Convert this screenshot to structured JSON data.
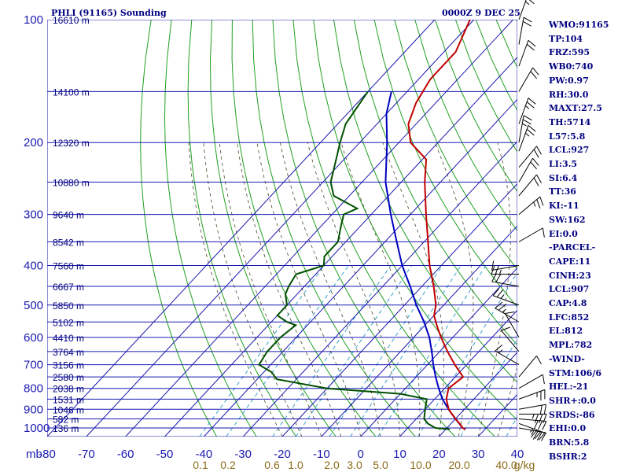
{
  "chart_data": {
    "type": "line",
    "title": "PHLI (91165) Sounding",
    "datetime": "0000Z  9 DEC 25",
    "pressure_unit_label": "mb",
    "mixing_unit_label": "g/kg",
    "pressure_levels": [
      100,
      200,
      300,
      400,
      500,
      600,
      700,
      800,
      900,
      1000
    ],
    "temperature_ticks": [
      -80,
      -70,
      -60,
      -50,
      -40,
      -30,
      -20,
      -10,
      0,
      10,
      20,
      30,
      40
    ],
    "mixing_ratio_ticks": [
      "0.1",
      "0.2",
      "0.6",
      "1.0",
      "2.0",
      "3.0",
      "5.0",
      "10.0",
      "20.0",
      "40.0"
    ],
    "height_labels": [
      {
        "p": 100,
        "label": "16610 m"
      },
      {
        "p": 150,
        "label": "14100 m"
      },
      {
        "p": 200,
        "label": "12320 m"
      },
      {
        "p": 250,
        "label": "10880 m"
      },
      {
        "p": 300,
        "label": "9640 m"
      },
      {
        "p": 350,
        "label": "8542 m"
      },
      {
        "p": 400,
        "label": "7560 m"
      },
      {
        "p": 450,
        "label": "6667 m"
      },
      {
        "p": 500,
        "label": "5850 m"
      },
      {
        "p": 550,
        "label": "5102 m"
      },
      {
        "p": 600,
        "label": "4410 m"
      },
      {
        "p": 650,
        "label": "3764 m"
      },
      {
        "p": 700,
        "label": "3156 m"
      },
      {
        "p": 750,
        "label": "2580 m"
      },
      {
        "p": 800,
        "label": "2038 m"
      },
      {
        "p": 850,
        "label": "1531 m"
      },
      {
        "p": 900,
        "label": "1046 m"
      },
      {
        "p": 950,
        "label": "582 m"
      },
      {
        "p": 1000,
        "label": "136 m"
      }
    ],
    "temperature_profile": [
      [
        1008,
        25
      ],
      [
        1000,
        24
      ],
      [
        980,
        22.5
      ],
      [
        950,
        20
      ],
      [
        925,
        18
      ],
      [
        900,
        16
      ],
      [
        850,
        13
      ],
      [
        800,
        11
      ],
      [
        750,
        12
      ],
      [
        700,
        7
      ],
      [
        650,
        2
      ],
      [
        600,
        -3
      ],
      [
        570,
        -6
      ],
      [
        550,
        -8
      ],
      [
        530,
        -10
      ],
      [
        500,
        -12
      ],
      [
        450,
        -17
      ],
      [
        400,
        -23
      ],
      [
        350,
        -29
      ],
      [
        300,
        -36
      ],
      [
        250,
        -44
      ],
      [
        220,
        -49
      ],
      [
        200,
        -57
      ],
      [
        180,
        -62
      ],
      [
        160,
        -65
      ],
      [
        140,
        -67
      ],
      [
        120,
        -67
      ],
      [
        100,
        -71
      ]
    ],
    "dewpoint_profile": [
      [
        1008,
        21
      ],
      [
        1000,
        17
      ],
      [
        975,
        14
      ],
      [
        950,
        12
      ],
      [
        925,
        11
      ],
      [
        900,
        10
      ],
      [
        875,
        9
      ],
      [
        850,
        8
      ],
      [
        825,
        0
      ],
      [
        810,
        -12
      ],
      [
        800,
        -20
      ],
      [
        760,
        -35
      ],
      [
        730,
        -38
      ],
      [
        700,
        -43
      ],
      [
        650,
        -44
      ],
      [
        600,
        -44
      ],
      [
        560,
        -43
      ],
      [
        550,
        -46
      ],
      [
        530,
        -50
      ],
      [
        500,
        -50
      ],
      [
        470,
        -53
      ],
      [
        450,
        -54
      ],
      [
        420,
        -55
      ],
      [
        400,
        -50
      ],
      [
        380,
        -52
      ],
      [
        350,
        -52
      ],
      [
        320,
        -55
      ],
      [
        300,
        -57
      ],
      [
        290,
        -55
      ],
      [
        270,
        -64
      ],
      [
        250,
        -68
      ],
      [
        220,
        -72
      ],
      [
        200,
        -75
      ],
      [
        180,
        -78
      ],
      [
        150,
        -80
      ]
    ],
    "parcel_profile": [
      [
        1008,
        25
      ],
      [
        1000,
        24
      ],
      [
        950,
        20
      ],
      [
        907,
        16.5
      ],
      [
        850,
        12
      ],
      [
        800,
        8.5
      ],
      [
        750,
        5
      ],
      [
        700,
        1.5
      ],
      [
        650,
        -2
      ],
      [
        600,
        -6
      ],
      [
        550,
        -11
      ],
      [
        500,
        -17
      ],
      [
        450,
        -23
      ],
      [
        400,
        -30
      ],
      [
        350,
        -37
      ],
      [
        300,
        -45
      ],
      [
        250,
        -54
      ],
      [
        200,
        -63
      ],
      [
        170,
        -70
      ],
      [
        150,
        -74
      ]
    ],
    "wind_barbs": [
      {
        "p": 1000,
        "dir": 100,
        "spd": 25
      },
      {
        "p": 975,
        "dir": 110,
        "spd": 28
      },
      {
        "p": 950,
        "dir": 95,
        "spd": 30
      },
      {
        "p": 925,
        "dir": 90,
        "spd": 25
      },
      {
        "p": 900,
        "dir": 80,
        "spd": 20
      },
      {
        "p": 850,
        "dir": 70,
        "spd": 15
      },
      {
        "p": 800,
        "dir": 60,
        "spd": 10
      },
      {
        "p": 750,
        "dir": 40,
        "spd": 10
      },
      {
        "p": 700,
        "dir": 300,
        "spd": 5
      },
      {
        "p": 650,
        "dir": 320,
        "spd": 10
      },
      {
        "p": 600,
        "dir": 330,
        "spd": 10
      },
      {
        "p": 550,
        "dir": 300,
        "spd": 15
      },
      {
        "p": 500,
        "dir": 290,
        "spd": 15
      },
      {
        "p": 450,
        "dir": 280,
        "spd": 20
      },
      {
        "p": 420,
        "dir": 270,
        "spd": 15
      },
      {
        "p": 400,
        "dir": 260,
        "spd": 10
      },
      {
        "p": 350,
        "dir": 60,
        "spd": 10
      },
      {
        "p": 300,
        "dir": 50,
        "spd": 15
      },
      {
        "p": 270,
        "dir": 40,
        "spd": 20
      },
      {
        "p": 250,
        "dir": 30,
        "spd": 20
      },
      {
        "p": 230,
        "dir": 40,
        "spd": 20
      },
      {
        "p": 210,
        "dir": 20,
        "spd": 15
      },
      {
        "p": 200,
        "dir": 10,
        "spd": 15
      },
      {
        "p": 180,
        "dir": 20,
        "spd": 15
      },
      {
        "p": 150,
        "dir": 30,
        "spd": 20
      },
      {
        "p": 130,
        "dir": 20,
        "spd": 20
      },
      {
        "p": 115,
        "dir": 10,
        "spd": 20
      },
      {
        "p": 100,
        "dir": 20,
        "spd": 15
      }
    ],
    "grid": true
  },
  "indices": [
    "WMO:91165",
    "TP:104",
    "FRZ:595",
    "WB0:740",
    "PW:0.97",
    "RH:30.0",
    "MAXT:27.5",
    "TH:5714",
    "L57:5.8",
    "LCL:927",
    "LI:3.5",
    "SI:6.4",
    "TT:36",
    "KI:-11",
    "SW:162",
    "EI:0.0",
    "-PARCEL-",
    "CAPE:11",
    "CINH:23",
    "LCL:907",
    "CAP:4.8",
    "LFC:852",
    "EL:812",
    "MPL:782",
    "-WIND-",
    "STM:106/6",
    "HEL:-21",
    "SHR+:0.0",
    "SRDS:-86",
    "EHI:0.0",
    "BRN:5.8",
    "BSHR:2"
  ],
  "colors": {
    "grid": "#1a1ab0",
    "dry_adiabat": "#20a020",
    "moist_adiabat": "#4a4a2a",
    "mixing_ratio": "#3aa0d0",
    "temperature": "#c00000",
    "dewpoint": "#005000",
    "parcel": "#0000c0",
    "barb": "#000000"
  }
}
